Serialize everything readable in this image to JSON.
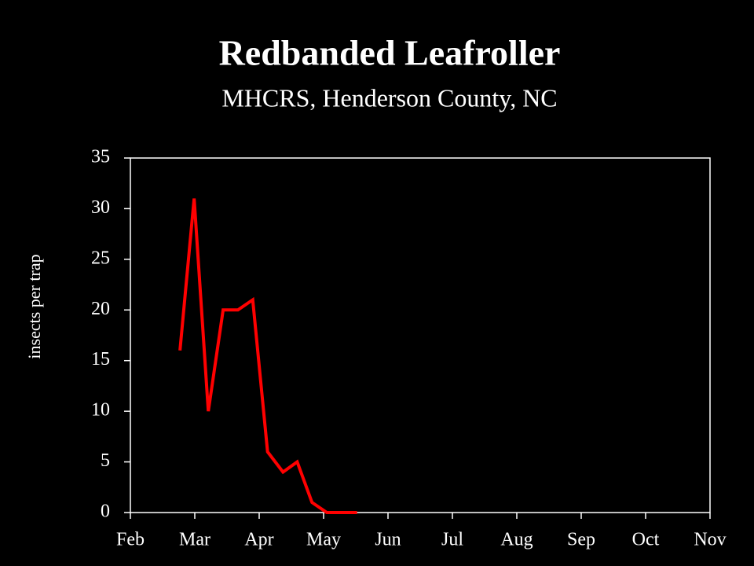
{
  "chart_data": {
    "type": "line",
    "title": "Redbanded Leafroller",
    "subtitle": "MHCRS, Henderson County, NC",
    "y_label": "insects per trap",
    "x": [
      0.77,
      0.99,
      1.21,
      1.44,
      1.67,
      1.9,
      2.13,
      2.37,
      2.59,
      2.82,
      3.05,
      3.28,
      3.52
    ],
    "series": [
      {
        "color": "#ff0000",
        "values": [
          16,
          31,
          10,
          20,
          20,
          21,
          6,
          4,
          5,
          1,
          0,
          0,
          0
        ]
      }
    ],
    "xlim": [
      0,
      9
    ],
    "xticks": [
      {
        "value": 0,
        "label": "Feb"
      },
      {
        "value": 1,
        "label": "Mar"
      },
      {
        "value": 2,
        "label": "Apr"
      },
      {
        "value": 3,
        "label": "May"
      },
      {
        "value": 4,
        "label": "Jun"
      },
      {
        "value": 5,
        "label": "Jul"
      },
      {
        "value": 6,
        "label": "Aug"
      },
      {
        "value": 7,
        "label": "Sep"
      },
      {
        "value": 8,
        "label": "Oct"
      },
      {
        "value": 9,
        "label": "Nov"
      }
    ],
    "ylim": [
      0,
      35
    ],
    "yticks": [
      0,
      5,
      10,
      15,
      20,
      25,
      30,
      35
    ]
  }
}
